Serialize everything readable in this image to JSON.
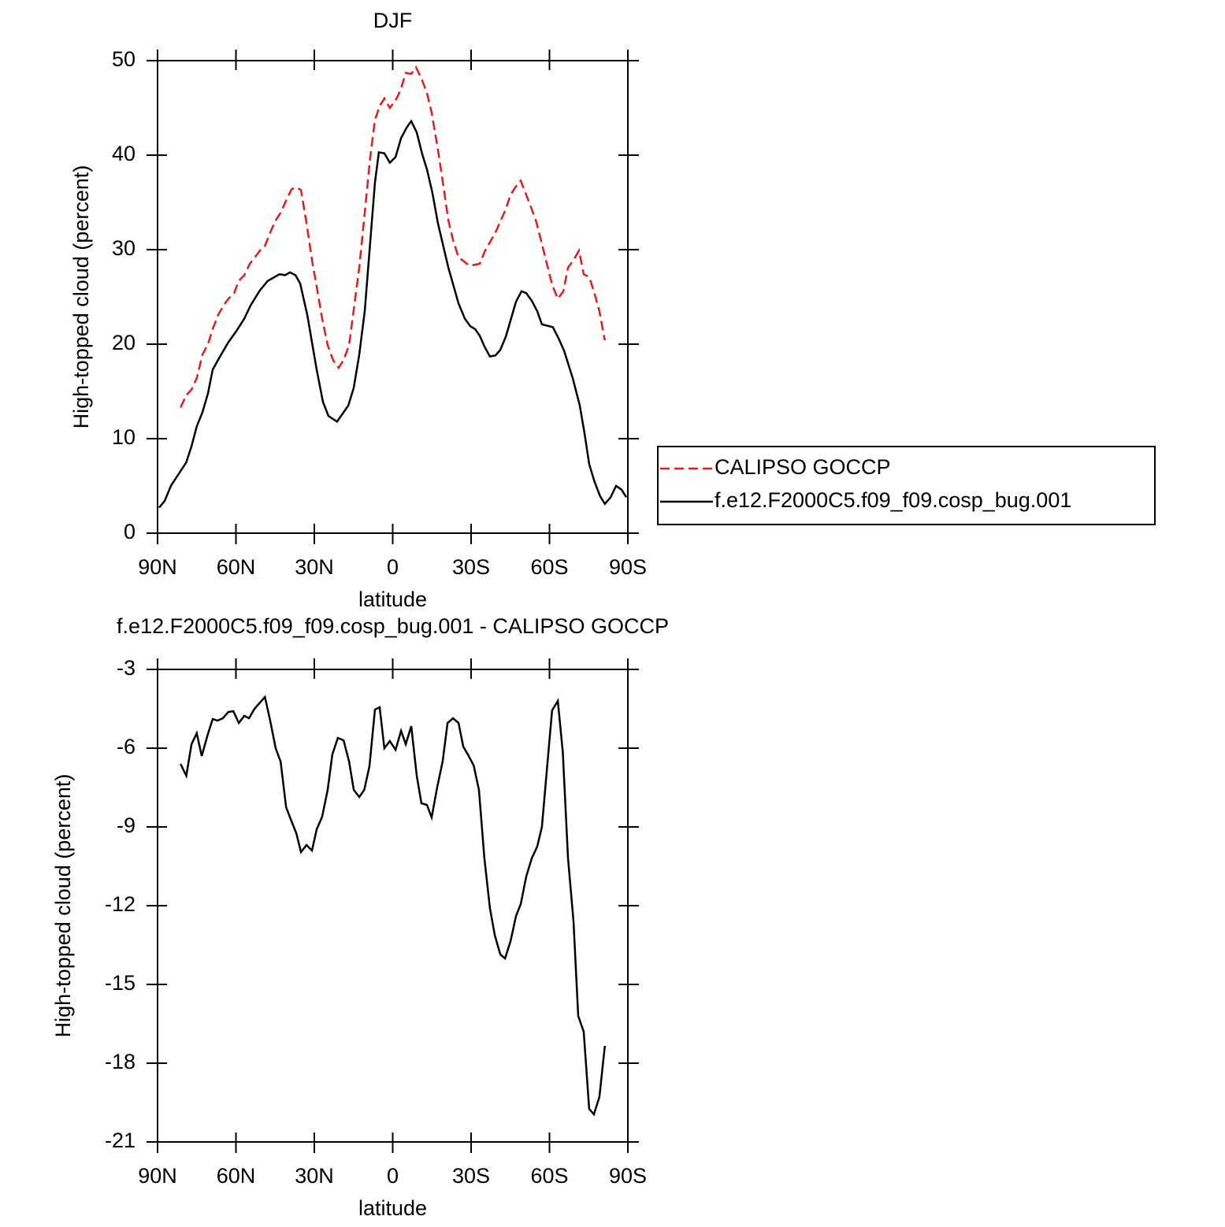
{
  "chart_data": [
    {
      "type": "line",
      "title": "DJF",
      "xlabel": "latitude",
      "ylabel": "High-topped cloud (percent)",
      "xlim": [
        90,
        -90
      ],
      "xticks": [
        {
          "value": 90,
          "label": "90N"
        },
        {
          "value": 60,
          "label": "60N"
        },
        {
          "value": 30,
          "label": "30N"
        },
        0,
        {
          "value": -30,
          "label": "30S"
        },
        {
          "value": -60,
          "label": "60S"
        },
        {
          "value": -90,
          "label": "90S"
        }
      ],
      "ylim": [
        0,
        50
      ],
      "yticks": [
        0,
        10,
        20,
        30,
        40,
        50
      ],
      "legend": "right",
      "series": [
        {
          "name": "CALIPSO GOCCP",
          "color": "#e41a1c",
          "line_style": "dashed",
          "x": [
            81.2,
            79,
            77,
            75,
            72.8,
            70.7,
            68.9,
            66.8,
            64.7,
            62.9,
            60.7,
            58.9,
            56.8,
            54.7,
            50.8,
            48.9,
            46.9,
            44.8,
            42.9,
            40.8,
            38.7,
            36.9,
            35.1,
            32.7,
            30.9,
            28.8,
            27,
            24.9,
            22.8,
            20.7,
            18.8,
            16.7,
            12.8,
            10.7,
            8.6,
            6.8,
            5,
            3.2,
            1.1,
            -1.1,
            -2.9,
            -5,
            -7.1,
            -8.9,
            -11,
            -13.1,
            -14.9,
            -17.3,
            -19.1,
            -21.3,
            -23.1,
            -25.2,
            -29.4,
            -33.3,
            -35.2,
            -39.3,
            -43.3,
            -45.1,
            -47.2,
            -49,
            -51.1,
            -53.2,
            -55,
            -57.1,
            -59.2,
            -61,
            -63.2,
            -65.3,
            -67.1,
            -69.2,
            -71.3,
            -73.1,
            -75.2,
            -77,
            -79.1,
            -81.2
          ],
          "values": [
            13.3,
            14.6,
            15.2,
            16.4,
            18.9,
            20,
            21.6,
            23.1,
            24.1,
            24.8,
            25.4,
            26.7,
            27.3,
            28.5,
            29.9,
            30.4,
            31.8,
            33.1,
            33.9,
            35.2,
            36.4,
            36.6,
            36.3,
            32.3,
            28.9,
            25.6,
            22.7,
            19.9,
            18.3,
            17.5,
            18.3,
            19.9,
            28.1,
            33.9,
            39.8,
            43.7,
            45.2,
            46,
            45,
            45.8,
            46.8,
            48.7,
            48.6,
            49.3,
            48.1,
            46.6,
            44.5,
            40.6,
            37.3,
            33.1,
            31,
            29.2,
            28.3,
            28.5,
            29.8,
            31.8,
            34.3,
            35.8,
            36.7,
            37.3,
            35.8,
            34.3,
            32.9,
            30.6,
            28.3,
            26.3,
            24.8,
            25.6,
            28.1,
            28.9,
            29.9,
            27.4,
            27.1,
            25.6,
            23.5,
            20.4
          ]
        },
        {
          "name": "f.e12.F2000C5.f09_f09.cosp_bug.001",
          "color": "#000000",
          "line_style": "solid",
          "x": [
            89.4,
            87.3,
            84.9,
            79,
            77,
            75,
            72.8,
            70.7,
            68.9,
            66.5,
            62.9,
            59.8,
            56.8,
            54.4,
            50.8,
            47.8,
            43.3,
            41.2,
            39.3,
            37.2,
            35.4,
            32.7,
            29.1,
            26.7,
            24.6,
            21.3,
            17,
            14.9,
            12.8,
            10.7,
            6.8,
            5.3,
            3.2,
            1.1,
            -1.1,
            -3.2,
            -5.3,
            -7.1,
            -9.2,
            -11.3,
            -13.1,
            -15.2,
            -17.3,
            -21.3,
            -25.2,
            -27.6,
            -29.7,
            -31.5,
            -33.3,
            -35.2,
            -37.2,
            -39.3,
            -41.2,
            -43.3,
            -47.2,
            -49.3,
            -51.1,
            -53.2,
            -55.3,
            -57.1,
            -61.3,
            -63.5,
            -65.6,
            -68.9,
            -71.6,
            -73.4,
            -75.2,
            -77.3,
            -79.4,
            -81.2,
            -83.4,
            -85.5,
            -87.6,
            -89.4
          ],
          "values": [
            2.7,
            3.4,
            5.0,
            7.5,
            9.2,
            11.3,
            12.8,
            14.8,
            17.3,
            18.5,
            20.2,
            21.4,
            22.7,
            24.1,
            25.7,
            26.7,
            27.4,
            27.3,
            27.6,
            27.3,
            26.4,
            23.1,
            17.3,
            13.9,
            12.4,
            11.8,
            13.5,
            15.4,
            18.9,
            23.5,
            37.1,
            40.3,
            40.2,
            39.2,
            39.8,
            41.8,
            42.9,
            43.6,
            42.4,
            40.1,
            38.5,
            36.0,
            32.8,
            28.1,
            24.3,
            22.7,
            21.9,
            21.6,
            20.9,
            19.7,
            18.7,
            18.8,
            19.4,
            20.8,
            24.5,
            25.6,
            25.4,
            24.6,
            23.5,
            22.1,
            21.8,
            20.6,
            19.3,
            16.4,
            13.5,
            10.6,
            7.3,
            5.4,
            3.9,
            3.1,
            3.8,
            5.0,
            4.6,
            3.8
          ]
        }
      ]
    },
    {
      "type": "line",
      "title": "f.e12.F2000C5.f09_f09.cosp_bug.001 - CALIPSO GOCCP",
      "xlabel": "latitude",
      "ylabel": "High-topped cloud (percent)",
      "xlim": [
        90,
        -90
      ],
      "xticks": [
        {
          "value": 90,
          "label": "90N"
        },
        {
          "value": 60,
          "label": "60N"
        },
        {
          "value": 30,
          "label": "30N"
        },
        0,
        {
          "value": -30,
          "label": "30S"
        },
        {
          "value": -60,
          "label": "60S"
        },
        {
          "value": -90,
          "label": "90S"
        }
      ],
      "ylim": [
        -21,
        -3
      ],
      "yticks": [
        -21,
        -18,
        -15,
        -12,
        -9,
        -6,
        -3
      ],
      "series": [
        {
          "color": "#000000",
          "line_style": "solid",
          "x": [
            81.2,
            79,
            77,
            75,
            73.1,
            71,
            68.9,
            67.1,
            65,
            62.9,
            61,
            58.9,
            56.8,
            55,
            52.9,
            48.9,
            46.9,
            44.8,
            42.9,
            40.8,
            38.7,
            36.9,
            35.1,
            33,
            30.9,
            29.1,
            27,
            24.9,
            23.1,
            21,
            18.8,
            16.7,
            14.9,
            12.8,
            10.9,
            8.9,
            6.8,
            5,
            3.2,
            1.1,
            -1.1,
            -3.2,
            -5,
            -7.1,
            -9.2,
            -11,
            -13.1,
            -14.9,
            -17,
            -19.1,
            -21,
            -23.1,
            -25.2,
            -27,
            -29.1,
            -31,
            -33,
            -35.1,
            -37.2,
            -39.1,
            -41.2,
            -43,
            -45.1,
            -47.2,
            -49,
            -51.1,
            -53.2,
            -55.3,
            -57.1,
            -59.2,
            -61,
            -63.2,
            -65.1,
            -67.1,
            -69.2,
            -71,
            -73.1,
            -75.2,
            -77,
            -79.1,
            -81.2
          ],
          "values": [
            -6.6,
            -7.05,
            -5.85,
            -5.43,
            -6.3,
            -5.55,
            -4.89,
            -4.95,
            -4.86,
            -4.62,
            -4.59,
            -5.04,
            -4.77,
            -4.86,
            -4.5,
            -4.05,
            -4.95,
            -6,
            -6.51,
            -8.25,
            -8.79,
            -9.24,
            -9.96,
            -9.69,
            -9.9,
            -9.09,
            -8.61,
            -7.59,
            -6.24,
            -5.61,
            -5.7,
            -6.51,
            -7.59,
            -7.86,
            -7.59,
            -6.69,
            -4.53,
            -4.44,
            -6,
            -5.73,
            -6.06,
            -5.34,
            -5.85,
            -5.16,
            -7.05,
            -8.1,
            -8.16,
            -8.64,
            -7.5,
            -6.51,
            -5.04,
            -4.86,
            -5.04,
            -5.94,
            -6.3,
            -6.66,
            -7.59,
            -10.2,
            -12.09,
            -13.14,
            -13.86,
            -14.01,
            -13.35,
            -12.39,
            -11.94,
            -10.89,
            -10.2,
            -9.75,
            -9,
            -6.6,
            -4.56,
            -4.2,
            -6.15,
            -10.2,
            -12.6,
            -16.2,
            -16.8,
            -19.74,
            -19.95,
            -19.29,
            -17.34
          ]
        }
      ]
    }
  ]
}
